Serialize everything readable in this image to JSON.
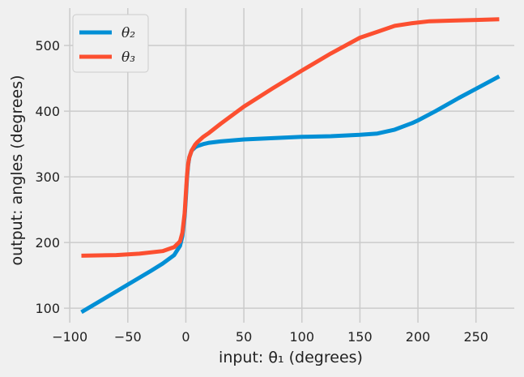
{
  "chart_data": {
    "type": "line",
    "title": "",
    "xlabel": "input: θ₁ (degrees)",
    "ylabel": "output: angles (degrees)",
    "xlim": [
      -105,
      283
    ],
    "ylim": [
      78,
      557
    ],
    "xticks": [
      -100,
      -50,
      0,
      50,
      100,
      150,
      200,
      250
    ],
    "xtick_labels": [
      "−100",
      "−50",
      "0",
      "50",
      "100",
      "150",
      "200",
      "250"
    ],
    "yticks": [
      100,
      200,
      300,
      400,
      500
    ],
    "ytick_labels": [
      "100",
      "200",
      "300",
      "400",
      "500"
    ],
    "grid": true,
    "legend_position": "top-left",
    "series": [
      {
        "name": "θ₂",
        "color": "#008fd5",
        "x": [
          -90,
          -70,
          -50,
          -30,
          -20,
          -10,
          -5,
          -3,
          -1,
          0,
          1,
          2,
          3,
          5,
          8,
          10,
          15,
          20,
          30,
          50,
          75,
          100,
          125,
          150,
          165,
          180,
          195,
          200,
          215,
          235,
          250,
          270
        ],
        "y": [
          94,
          115,
          136,
          157,
          168,
          181,
          195,
          210,
          240,
          268,
          298,
          318,
          330,
          340,
          345,
          347,
          350,
          352,
          354,
          357,
          359,
          361,
          362,
          364,
          366,
          372,
          382,
          386,
          400,
          420,
          434,
          453
        ]
      },
      {
        "name": "θ₃",
        "color": "#fc4f30",
        "x": [
          -90,
          -60,
          -40,
          -20,
          -10,
          -5,
          -3,
          -1,
          0,
          1,
          2,
          3,
          5,
          8,
          10,
          15,
          20,
          30,
          50,
          75,
          100,
          125,
          150,
          165,
          180,
          195,
          210,
          230,
          250,
          270
        ],
        "y": [
          180,
          181,
          183,
          187,
          193,
          202,
          215,
          245,
          275,
          302,
          320,
          330,
          340,
          349,
          353,
          361,
          367,
          381,
          407,
          435,
          462,
          488,
          512,
          521,
          530,
          534,
          537,
          538,
          539,
          540
        ]
      }
    ]
  }
}
